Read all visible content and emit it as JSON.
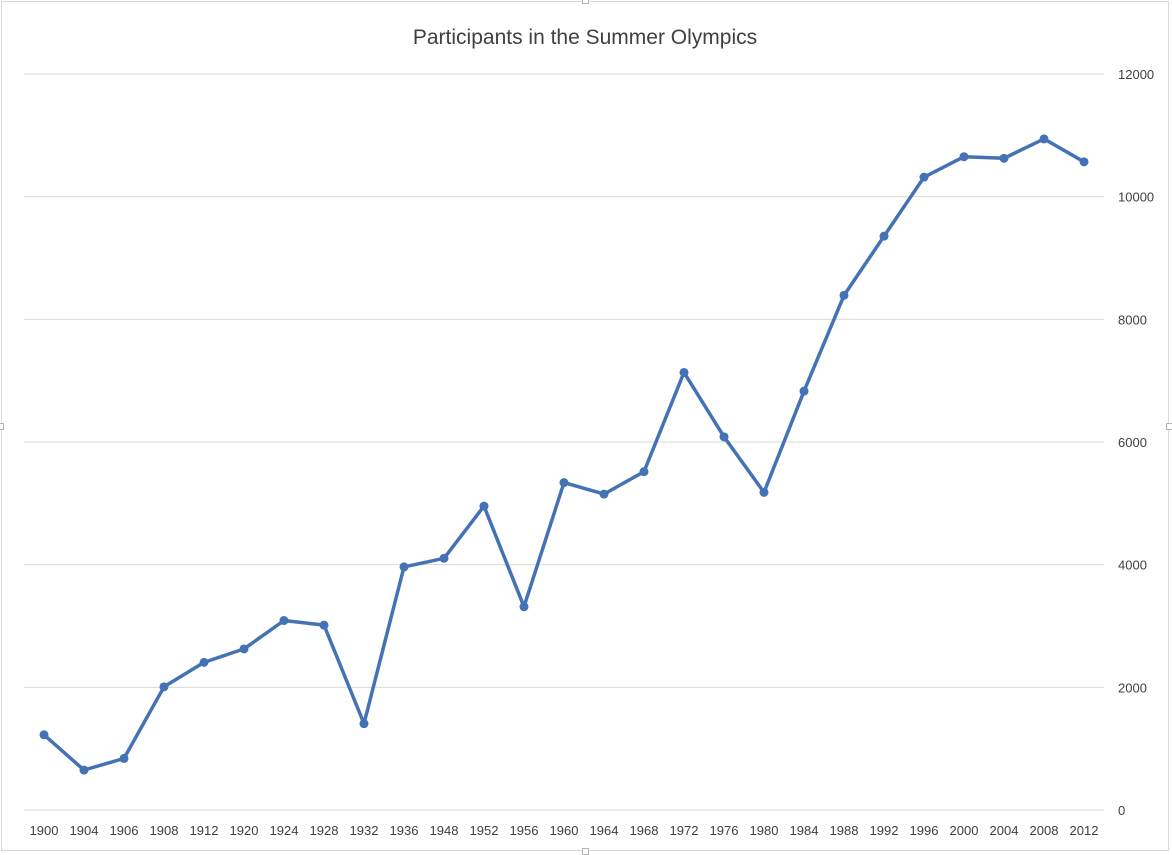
{
  "chart_data": {
    "type": "line",
    "title": "Participants in the Summer Olympics",
    "xlabel": "",
    "ylabel": "",
    "ylim": [
      0,
      12000
    ],
    "y_ticks": [
      "0",
      "2000",
      "4000",
      "6000",
      "8000",
      "10000",
      "12000"
    ],
    "y_axis_side": "right",
    "grid": true,
    "legend": "none",
    "color": "#4472b4",
    "categories": [
      "1900",
      "1904",
      "1906",
      "1908",
      "1912",
      "1920",
      "1924",
      "1928",
      "1932",
      "1936",
      "1948",
      "1952",
      "1956",
      "1960",
      "1964",
      "1968",
      "1972",
      "1976",
      "1980",
      "1984",
      "1988",
      "1992",
      "1996",
      "2000",
      "2004",
      "2008",
      "2012"
    ],
    "series": [
      {
        "values": [
          1226,
          651,
          841,
          2008,
          2407,
          2626,
          3089,
          3014,
          1408,
          3963,
          4104,
          4955,
          3314,
          5338,
          5151,
          5516,
          7134,
          6084,
          5179,
          6829,
          8391,
          9356,
          10318,
          10651,
          10625,
          10942,
          10568
        ]
      }
    ]
  }
}
